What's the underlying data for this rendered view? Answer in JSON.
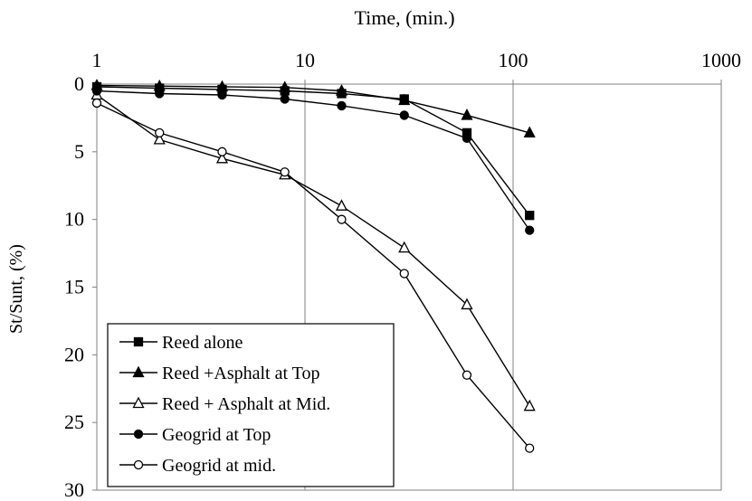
{
  "chart_data": {
    "type": "line",
    "title": "",
    "xlabel": "Time, (min.)",
    "ylabel": "St/Sunt, (%)",
    "x_scale": "log",
    "xlim": [
      1,
      1000
    ],
    "ylim": [
      0,
      30
    ],
    "y_inverted": true,
    "x_axis_position": "top",
    "xticks": [
      "1",
      "10",
      "100",
      "1000"
    ],
    "yticks": [
      "0",
      "5",
      "10",
      "15",
      "20",
      "25",
      "30"
    ],
    "grid": "vertical only",
    "legend_position": "bottom-left",
    "series": [
      {
        "name": "Reed alone",
        "marker": "square-filled",
        "x": [
          1,
          2,
          4,
          8,
          15,
          30,
          60,
          120
        ],
        "y": [
          0.2,
          0.3,
          0.4,
          0.5,
          0.7,
          1.1,
          3.6,
          9.7
        ]
      },
      {
        "name": "Reed +Asphalt at Top",
        "marker": "triangle-filled",
        "x": [
          1,
          2,
          4,
          8,
          15,
          30,
          60,
          120
        ],
        "y": [
          0.1,
          0.15,
          0.2,
          0.25,
          0.5,
          1.2,
          2.3,
          3.6
        ]
      },
      {
        "name": "Reed + Asphalt at Mid.",
        "marker": "triangle-open",
        "x": [
          1,
          2,
          4,
          8,
          15,
          30,
          60,
          120
        ],
        "y": [
          0.8,
          4.1,
          5.5,
          6.7,
          9.0,
          12.1,
          16.3,
          23.8
        ]
      },
      {
        "name": "Geogrid at Top",
        "marker": "circle-filled",
        "x": [
          1,
          2,
          4,
          8,
          15,
          30,
          60,
          120
        ],
        "y": [
          0.5,
          0.7,
          0.8,
          1.1,
          1.6,
          2.3,
          4.0,
          10.8
        ]
      },
      {
        "name": "Geogrid at mid.",
        "marker": "circle-open",
        "x": [
          1,
          2,
          4,
          8,
          15,
          30,
          60,
          120
        ],
        "y": [
          1.4,
          3.6,
          5.0,
          6.5,
          10.0,
          14.0,
          21.5,
          26.9
        ]
      }
    ]
  }
}
